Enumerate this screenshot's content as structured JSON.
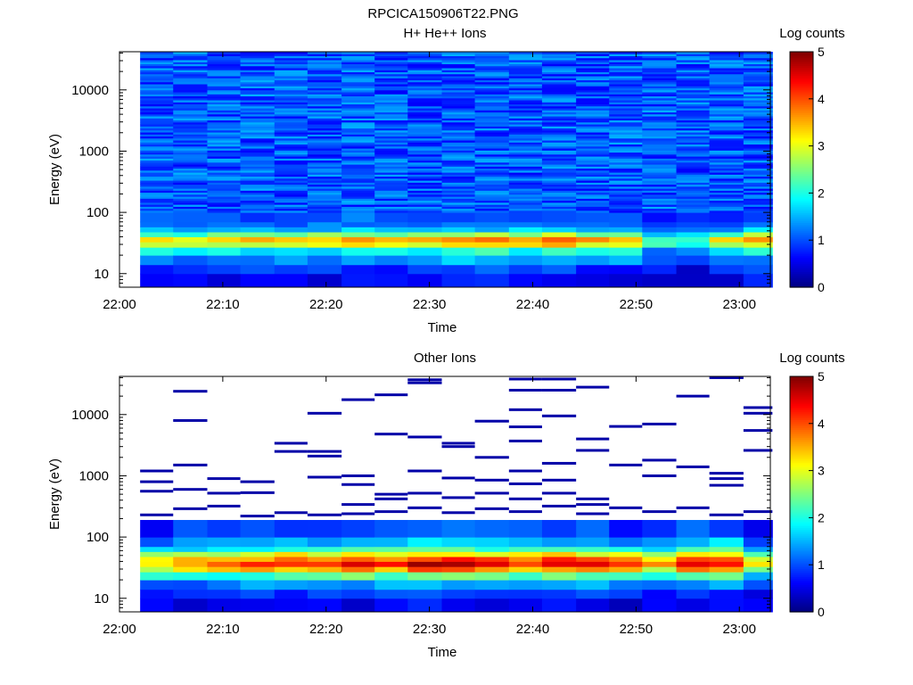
{
  "figure_title": "RPCICA150906T22.PNG",
  "colors": {
    "colormap": [
      "#00007f",
      "#0000ff",
      "#007fff",
      "#00ffff",
      "#7fff7f",
      "#ffff00",
      "#ff7f00",
      "#ff0000",
      "#7f0000"
    ],
    "axes": "#000000",
    "background": "#ffffff"
  },
  "chart_data": [
    {
      "type": "heatmap",
      "title": "H+ He++ Ions",
      "xlabel": "Time",
      "ylabel": "Energy (eV)",
      "x_ticks": [
        "22:00",
        "22:10",
        "22:20",
        "22:30",
        "22:40",
        "22:50",
        "23:00"
      ],
      "x_tick_minutes": [
        0,
        10,
        20,
        30,
        40,
        50,
        60
      ],
      "xlim_minutes": [
        0,
        63
      ],
      "y_scale": "log",
      "y_ticks": [
        "10",
        "100",
        "1000",
        "10000"
      ],
      "y_tick_values": [
        10,
        100,
        1000,
        10000
      ],
      "ylim": [
        6,
        42000
      ],
      "colorbar": {
        "label": "Log counts",
        "ticks": [
          "0",
          "1",
          "2",
          "3",
          "4",
          "5"
        ],
        "range": [
          0,
          5
        ]
      },
      "data": {
        "time_start_minutes": [
          2,
          5.2,
          8.5,
          11.7,
          15,
          18.2,
          21.5,
          24.7,
          27.9,
          31.2,
          34.4,
          37.7,
          40.9,
          44.2,
          47.4,
          50.6,
          53.9,
          57.1,
          60.4
        ],
        "time_end_minutes": 63.2,
        "energy_band_edges": [
          6,
          10,
          14,
          20,
          27,
          33,
          40,
          48,
          58,
          70,
          100,
          42000
        ],
        "band_level_profile": [
          0.6,
          0.9,
          1.4,
          2.0,
          3.1,
          3.6,
          2.6,
          1.6,
          1.2,
          1.1,
          1.0
        ],
        "column_peak_levels": [
          3.2,
          3.0,
          3.3,
          3.4,
          3.5,
          3.4,
          3.6,
          3.5,
          3.5,
          3.8,
          3.7,
          3.6,
          3.9,
          3.5,
          3.4,
          2.4,
          2.2,
          3.2,
          3.6
        ]
      }
    },
    {
      "type": "heatmap",
      "title": "Other Ions",
      "xlabel": "Time",
      "ylabel": "Energy (eV)",
      "x_ticks": [
        "22:00",
        "22:10",
        "22:20",
        "22:30",
        "22:40",
        "22:50",
        "23:00"
      ],
      "x_tick_minutes": [
        0,
        10,
        20,
        30,
        40,
        50,
        60
      ],
      "xlim_minutes": [
        0,
        63
      ],
      "y_scale": "log",
      "y_ticks": [
        "10",
        "100",
        "1000",
        "10000"
      ],
      "y_tick_values": [
        10,
        100,
        1000,
        10000
      ],
      "ylim": [
        6,
        42000
      ],
      "colorbar": {
        "label": "Log counts",
        "ticks": [
          "0",
          "1",
          "2",
          "3",
          "4",
          "5"
        ],
        "range": [
          0,
          5
        ]
      },
      "data": {
        "time_start_minutes": [
          2,
          5.2,
          8.5,
          11.7,
          15,
          18.2,
          21.5,
          24.7,
          27.9,
          31.2,
          34.4,
          37.7,
          40.9,
          44.2,
          47.4,
          50.6,
          53.9,
          57.1,
          60.4
        ],
        "time_end_minutes": 63.2,
        "energy_band_edges": [
          6,
          10,
          14,
          20,
          27,
          33,
          40,
          48,
          58,
          70,
          100,
          190
        ],
        "band_level_profile": [
          0.5,
          0.8,
          1.3,
          2.2,
          3.3,
          4.0,
          3.6,
          2.9,
          2.0,
          1.4,
          0.9
        ],
        "column_peak_levels": [
          3.4,
          3.7,
          3.9,
          4.1,
          4.3,
          4.2,
          4.6,
          4.2,
          4.7,
          4.6,
          4.4,
          4.2,
          4.5,
          4.3,
          4.0,
          3.6,
          4.5,
          4.5,
          3.0
        ],
        "sparse_high_energy_counts": [
          {
            "t": 2,
            "e": [
              230,
              560,
              800,
              1200
            ]
          },
          {
            "t": 5.2,
            "e": [
              290,
              600,
              1500,
              8000,
              24000
            ]
          },
          {
            "t": 8.5,
            "e": [
              320,
              520,
              900
            ]
          },
          {
            "t": 11.7,
            "e": [
              220,
              530,
              800
            ]
          },
          {
            "t": 15,
            "e": [
              250,
              2500,
              3400
            ]
          },
          {
            "t": 18.2,
            "e": [
              230,
              950,
              2100,
              2500,
              10500
            ]
          },
          {
            "t": 21.5,
            "e": [
              240,
              340,
              720,
              1000,
              17500
            ]
          },
          {
            "t": 24.7,
            "e": [
              260,
              420,
              500,
              4800,
              21000
            ]
          },
          {
            "t": 27.9,
            "e": [
              300,
              520,
              1200,
              4300,
              33000,
              37000
            ]
          },
          {
            "t": 31.2,
            "e": [
              250,
              440,
              920,
              3000,
              3400
            ]
          },
          {
            "t": 34.4,
            "e": [
              290,
              520,
              850,
              2000,
              7800
            ]
          },
          {
            "t": 37.7,
            "e": [
              260,
              420,
              740,
              1200,
              3700,
              6300,
              12000,
              25000,
              38000
            ]
          },
          {
            "t": 40.9,
            "e": [
              320,
              520,
              850,
              1600,
              9500,
              25000,
              38000
            ]
          },
          {
            "t": 44.2,
            "e": [
              240,
              340,
              420,
              2600,
              4000,
              28000
            ]
          },
          {
            "t": 47.4,
            "e": [
              300,
              1500,
              6400
            ]
          },
          {
            "t": 50.6,
            "e": [
              260,
              1000,
              1800,
              7000
            ]
          },
          {
            "t": 53.9,
            "e": [
              300,
              1400,
              20000
            ]
          },
          {
            "t": 57.1,
            "e": [
              230,
              700,
              900,
              1100,
              40000
            ]
          },
          {
            "t": 60.4,
            "e": [
              260,
              2600,
              5500,
              10500,
              13000
            ]
          }
        ]
      }
    }
  ]
}
